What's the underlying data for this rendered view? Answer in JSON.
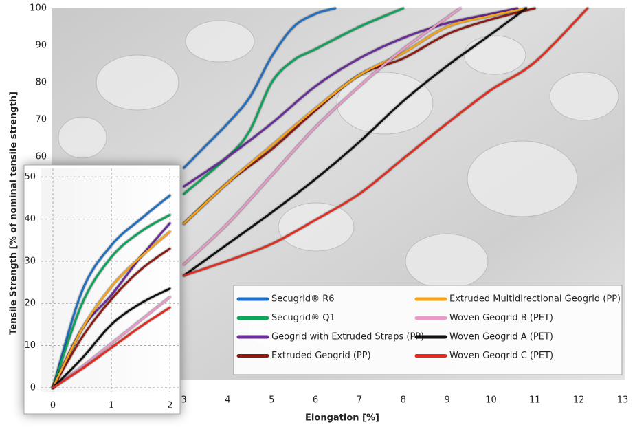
{
  "chart_data": [
    {
      "type": "line",
      "xlabel": "Elongation [%]",
      "ylabel": "Tensile Strength [% of nominal tensile strength]",
      "xlim": [
        0,
        13
      ],
      "ylim": [
        0,
        100
      ],
      "xticks": [
        3,
        4,
        5,
        6,
        7,
        8,
        9,
        10,
        11,
        12,
        13
      ],
      "yticks": [
        60,
        70,
        80,
        90,
        100
      ],
      "legend": "lower right",
      "series": [
        {
          "name": "Secugrid® R6",
          "color": "#1f6fc4",
          "x": [
            3,
            3.5,
            4,
            4.5,
            5,
            5.5,
            6,
            6.45
          ],
          "values": [
            57,
            63,
            69,
            76,
            87,
            95,
            98.5,
            100
          ]
        },
        {
          "name": "Secugrid® Q1",
          "color": "#0aa55a",
          "x": [
            3,
            4,
            4.5,
            5,
            5.5,
            6,
            7,
            8
          ],
          "values": [
            50,
            60,
            67,
            80,
            86,
            89,
            95,
            100
          ]
        },
        {
          "name": "Geogrid with Extruded Straps (PP)",
          "color": "#6a2c9a",
          "x": [
            3,
            4,
            5,
            6,
            7,
            8,
            9,
            10,
            10.6
          ],
          "values": [
            52,
            60,
            69,
            79,
            86.5,
            92,
            96,
            98.5,
            100
          ]
        },
        {
          "name": "Extruded Geogrid (PP)",
          "color": "#8b1a12",
          "x": [
            3,
            4,
            5,
            6,
            7,
            8,
            9,
            10,
            11
          ],
          "values": [
            42,
            53,
            62,
            72.5,
            82,
            86.5,
            93,
            97,
            100
          ]
        },
        {
          "name": "Extruded Multidirectional Geogrid (PP)",
          "color": "#f5a31a",
          "x": [
            3,
            4,
            5,
            6,
            7,
            8,
            9,
            10,
            10.8
          ],
          "values": [
            42,
            53,
            63,
            73,
            82,
            88,
            95,
            98,
            100
          ]
        },
        {
          "name": "Woven Geogrid B (PET)",
          "color": "#e99ac8",
          "x": [
            3,
            4,
            5,
            6,
            7,
            8,
            9,
            9.3
          ],
          "values": [
            31,
            42,
            55,
            68,
            79,
            89,
            97.5,
            100
          ]
        },
        {
          "name": "Woven Geogrid A (PET)",
          "color": "#111111",
          "x": [
            3,
            4,
            5,
            6,
            7,
            8,
            9,
            10,
            10.8
          ],
          "values": [
            28,
            36.5,
            45,
            54,
            64,
            75,
            84.5,
            93,
            100
          ]
        },
        {
          "name": "Woven Geogrid C (PET)",
          "color": "#e52b1e",
          "x": [
            3,
            4,
            5,
            6,
            7,
            8,
            9,
            10,
            11,
            12.2
          ],
          "values": [
            28,
            32,
            36.5,
            43,
            50,
            59.5,
            69,
            78,
            85.5,
            100
          ]
        }
      ]
    },
    {
      "type": "line",
      "xlim": [
        -0.2,
        2.15
      ],
      "ylim": [
        -1,
        52
      ],
      "x": [
        0,
        0.5,
        1,
        1.5,
        2
      ],
      "xticks": [
        0,
        1,
        2
      ],
      "yticks": [
        0,
        10,
        20,
        30,
        40,
        50
      ],
      "grid": true,
      "series": [
        {
          "color": "#1f6fc4",
          "values": [
            0,
            23,
            33.8,
            40,
            45.6
          ]
        },
        {
          "color": "#0aa55a",
          "values": [
            0,
            20,
            31,
            37,
            41
          ]
        },
        {
          "color": "#6a2c9a",
          "values": [
            0,
            14,
            22,
            31,
            39
          ]
        },
        {
          "color": "#8b1a12",
          "values": [
            0,
            12,
            21,
            28,
            33
          ]
        },
        {
          "color": "#f5a31a",
          "values": [
            0,
            14,
            24,
            31,
            37
          ]
        },
        {
          "color": "#e99ac8",
          "values": [
            0,
            5,
            10.5,
            16,
            21.5
          ]
        },
        {
          "color": "#111111",
          "values": [
            0,
            7,
            15,
            20,
            23.5
          ]
        },
        {
          "color": "#e52b1e",
          "values": [
            0,
            4.5,
            9.5,
            14.5,
            19
          ]
        }
      ]
    }
  ]
}
